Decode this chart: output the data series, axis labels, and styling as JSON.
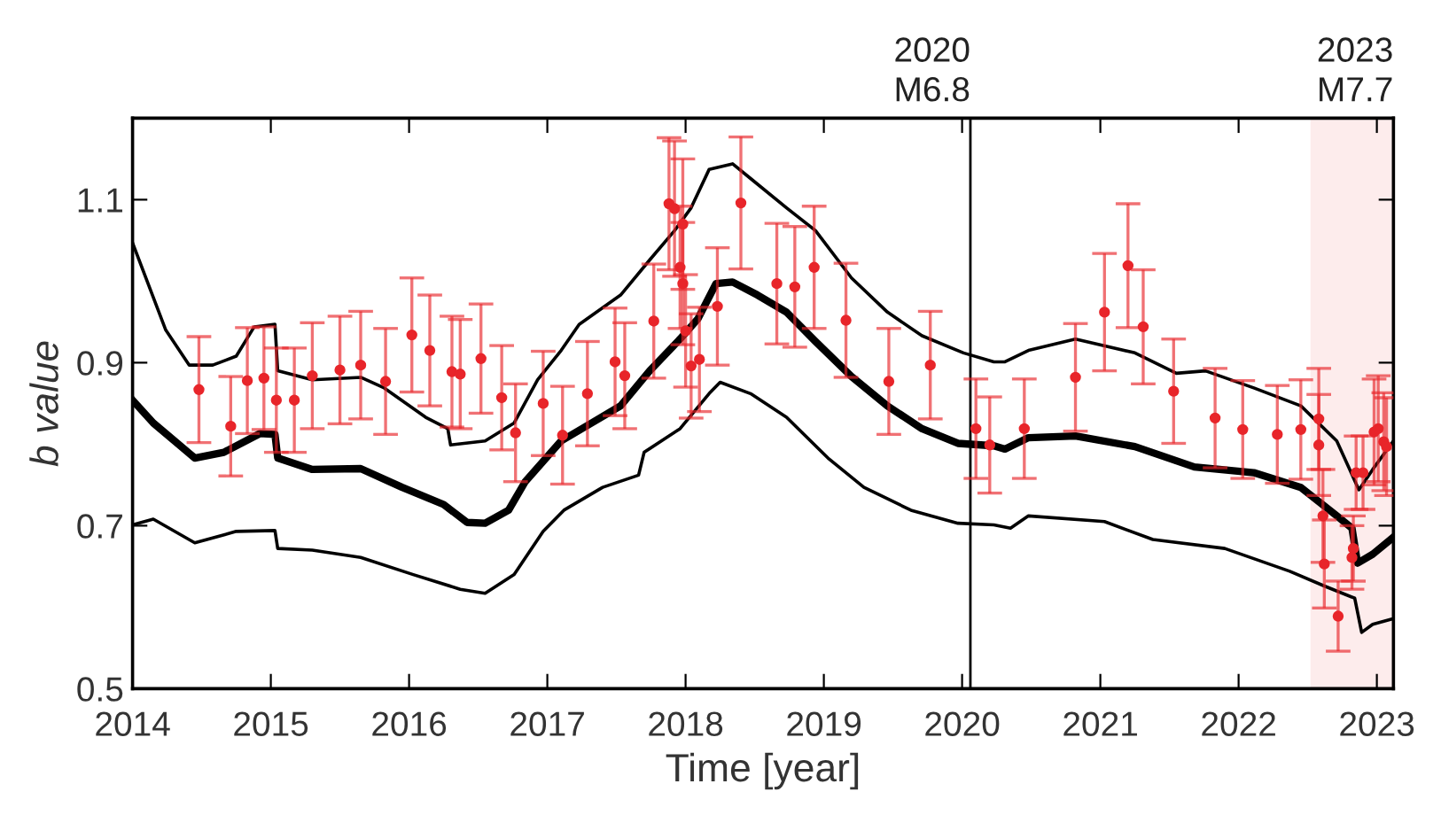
{
  "chart_data": {
    "type": "line",
    "xlabel": "Time [year]",
    "ylabel": "b value",
    "xlim": [
      2014,
      2023.12
    ],
    "xticks": [
      2014,
      2015,
      2016,
      2017,
      2018,
      2019,
      2020,
      2021,
      2022,
      2023
    ],
    "ylim": [
      0.5,
      1.2
    ],
    "yticks": [
      0.5,
      0.7,
      0.9,
      1.1
    ],
    "grid": false,
    "legend": false,
    "ref_lines": [
      {
        "axis": "x",
        "value": 2020.06,
        "label": "2020\nM6.8",
        "color": "#000000"
      }
    ],
    "bands": [
      {
        "axis": "x",
        "from": 2022.52,
        "to": 2023.12,
        "label": "2023\nM7.7",
        "color": "#fdecec"
      }
    ],
    "series": [
      {
        "color": "#000000",
        "marker": "none",
        "x": [
          2014.0,
          2014.24,
          2014.41,
          2014.58,
          2014.75,
          2014.88,
          2015.03,
          2015.05,
          2015.3,
          2015.65,
          2015.82,
          2016.12,
          2016.28,
          2016.3,
          2016.55,
          2016.76,
          2016.93,
          2017.1,
          2017.23,
          2017.53,
          2017.74,
          2017.92,
          2018.04,
          2018.17,
          2018.34,
          2018.47,
          2018.73,
          2018.94,
          2019.2,
          2019.46,
          2019.71,
          2020.01,
          2020.23,
          2020.31,
          2020.48,
          2020.82,
          2021.25,
          2021.55,
          2021.76,
          2022.11,
          2022.45,
          2022.71,
          2022.87,
          2022.97,
          2023.12
        ],
        "values": [
          1.047,
          0.94,
          0.897,
          0.897,
          0.908,
          0.944,
          0.947,
          0.89,
          0.879,
          0.882,
          0.869,
          0.833,
          0.819,
          0.799,
          0.804,
          0.826,
          0.879,
          0.915,
          0.947,
          0.983,
          1.026,
          1.062,
          1.09,
          1.137,
          1.144,
          1.126,
          1.09,
          1.062,
          1.004,
          0.962,
          0.933,
          0.912,
          0.901,
          0.901,
          0.915,
          0.929,
          0.912,
          0.887,
          0.89,
          0.869,
          0.847,
          0.804,
          0.744,
          0.769,
          0.804
        ]
      },
      {
        "color": "#000000",
        "marker": "none",
        "x": [
          2014.0,
          2014.15,
          2014.45,
          2014.66,
          2014.92,
          2015.03,
          2015.05,
          2015.3,
          2015.65,
          2015.95,
          2016.25,
          2016.42,
          2016.55,
          2016.72,
          2016.84,
          2016.97,
          2017.1,
          2017.32,
          2017.53,
          2017.74,
          2017.96,
          2018.09,
          2018.22,
          2018.34,
          2018.52,
          2018.73,
          2018.94,
          2019.2,
          2019.46,
          2019.71,
          2019.97,
          2020.23,
          2020.31,
          2020.48,
          2020.82,
          2021.25,
          2021.68,
          2022.11,
          2022.45,
          2022.71,
          2022.82,
          2022.86,
          2022.97,
          2023.12
        ],
        "values": [
          0.854,
          0.826,
          0.783,
          0.79,
          0.813,
          0.812,
          0.783,
          0.769,
          0.77,
          0.747,
          0.726,
          0.704,
          0.703,
          0.719,
          0.754,
          0.779,
          0.804,
          0.826,
          0.847,
          0.89,
          0.929,
          0.954,
          0.997,
          0.999,
          0.983,
          0.962,
          0.926,
          0.883,
          0.847,
          0.819,
          0.801,
          0.798,
          0.794,
          0.808,
          0.81,
          0.797,
          0.772,
          0.765,
          0.747,
          0.712,
          0.697,
          0.654,
          0.665,
          0.686
        ]
      },
      {
        "color": "#000000",
        "marker": "none",
        "x": [
          2014.0,
          2014.15,
          2014.45,
          2014.75,
          2015.03,
          2015.05,
          2015.3,
          2015.65,
          2016.03,
          2016.37,
          2016.55,
          2016.76,
          2016.97,
          2017.12,
          2017.4,
          2017.66,
          2017.7,
          2017.96,
          2018.17,
          2018.25,
          2018.47,
          2018.73,
          2019.03,
          2019.29,
          2019.63,
          2019.97,
          2020.23,
          2020.35,
          2020.48,
          2021.03,
          2021.38,
          2021.9,
          2022.37,
          2022.62,
          2022.84,
          2022.89,
          2022.97,
          2023.12
        ],
        "values": [
          0.701,
          0.708,
          0.679,
          0.693,
          0.694,
          0.672,
          0.67,
          0.661,
          0.64,
          0.622,
          0.617,
          0.64,
          0.693,
          0.719,
          0.747,
          0.762,
          0.79,
          0.819,
          0.862,
          0.876,
          0.862,
          0.833,
          0.783,
          0.747,
          0.719,
          0.703,
          0.701,
          0.697,
          0.712,
          0.705,
          0.683,
          0.672,
          0.644,
          0.626,
          0.611,
          0.569,
          0.579,
          0.586
        ]
      },
      {
        "type": "scatter",
        "color": "#e8252a",
        "marker": "circle",
        "x": [
          2014.48,
          2014.71,
          2014.83,
          2014.95,
          2015.04,
          2015.17,
          2015.3,
          2015.5,
          2015.65,
          2015.83,
          2016.02,
          2016.15,
          2016.31,
          2016.37,
          2016.52,
          2016.67,
          2016.77,
          2016.97,
          2017.11,
          2017.29,
          2017.49,
          2017.56,
          2017.77,
          2017.88,
          2017.92,
          2017.96,
          2017.98,
          2017.98,
          2018.0,
          2018.04,
          2018.1,
          2018.23,
          2018.4,
          2018.66,
          2018.79,
          2018.93,
          2019.16,
          2019.47,
          2019.77,
          2020.1,
          2020.2,
          2020.45,
          2020.82,
          2021.03,
          2021.2,
          2021.31,
          2021.53,
          2021.83,
          2022.03,
          2022.28,
          2022.45,
          2022.58,
          2022.58,
          2022.61,
          2022.62,
          2022.72,
          2022.82,
          2022.83,
          2022.85,
          2022.9,
          2022.98,
          2023.01,
          2023.05,
          2023.07
        ],
        "values": [
          0.867,
          0.822,
          0.878,
          0.881,
          0.854,
          0.854,
          0.884,
          0.891,
          0.897,
          0.877,
          0.934,
          0.915,
          0.889,
          0.886,
          0.905,
          0.857,
          0.814,
          0.85,
          0.811,
          0.862,
          0.901,
          0.884,
          0.951,
          1.095,
          1.089,
          1.017,
          1.07,
          0.997,
          0.939,
          0.896,
          0.904,
          0.969,
          1.096,
          0.997,
          0.993,
          1.017,
          0.952,
          0.877,
          0.897,
          0.819,
          0.799,
          0.819,
          0.882,
          0.962,
          1.019,
          0.944,
          0.865,
          0.832,
          0.818,
          0.812,
          0.818,
          0.831,
          0.799,
          0.712,
          0.653,
          0.589,
          0.661,
          0.672,
          0.765,
          0.765,
          0.815,
          0.819,
          0.803,
          0.797
        ],
        "errors": [
          0.065,
          0.061,
          0.065,
          0.063,
          0.064,
          0.064,
          0.065,
          0.066,
          0.066,
          0.065,
          0.07,
          0.068,
          0.068,
          0.067,
          0.067,
          0.064,
          0.06,
          0.064,
          0.06,
          0.064,
          0.066,
          0.065,
          0.07,
          0.081,
          0.083,
          0.075,
          0.08,
          0.075,
          0.069,
          0.064,
          0.064,
          0.072,
          0.081,
          0.074,
          0.074,
          0.075,
          0.07,
          0.065,
          0.066,
          0.061,
          0.059,
          0.061,
          0.066,
          0.072,
          0.076,
          0.07,
          0.064,
          0.061,
          0.06,
          0.06,
          0.061,
          0.062,
          0.062,
          0.057,
          0.054,
          0.043,
          0.039,
          0.04,
          0.045,
          0.045,
          0.065,
          0.065,
          0.06,
          0.06
        ]
      }
    ]
  }
}
